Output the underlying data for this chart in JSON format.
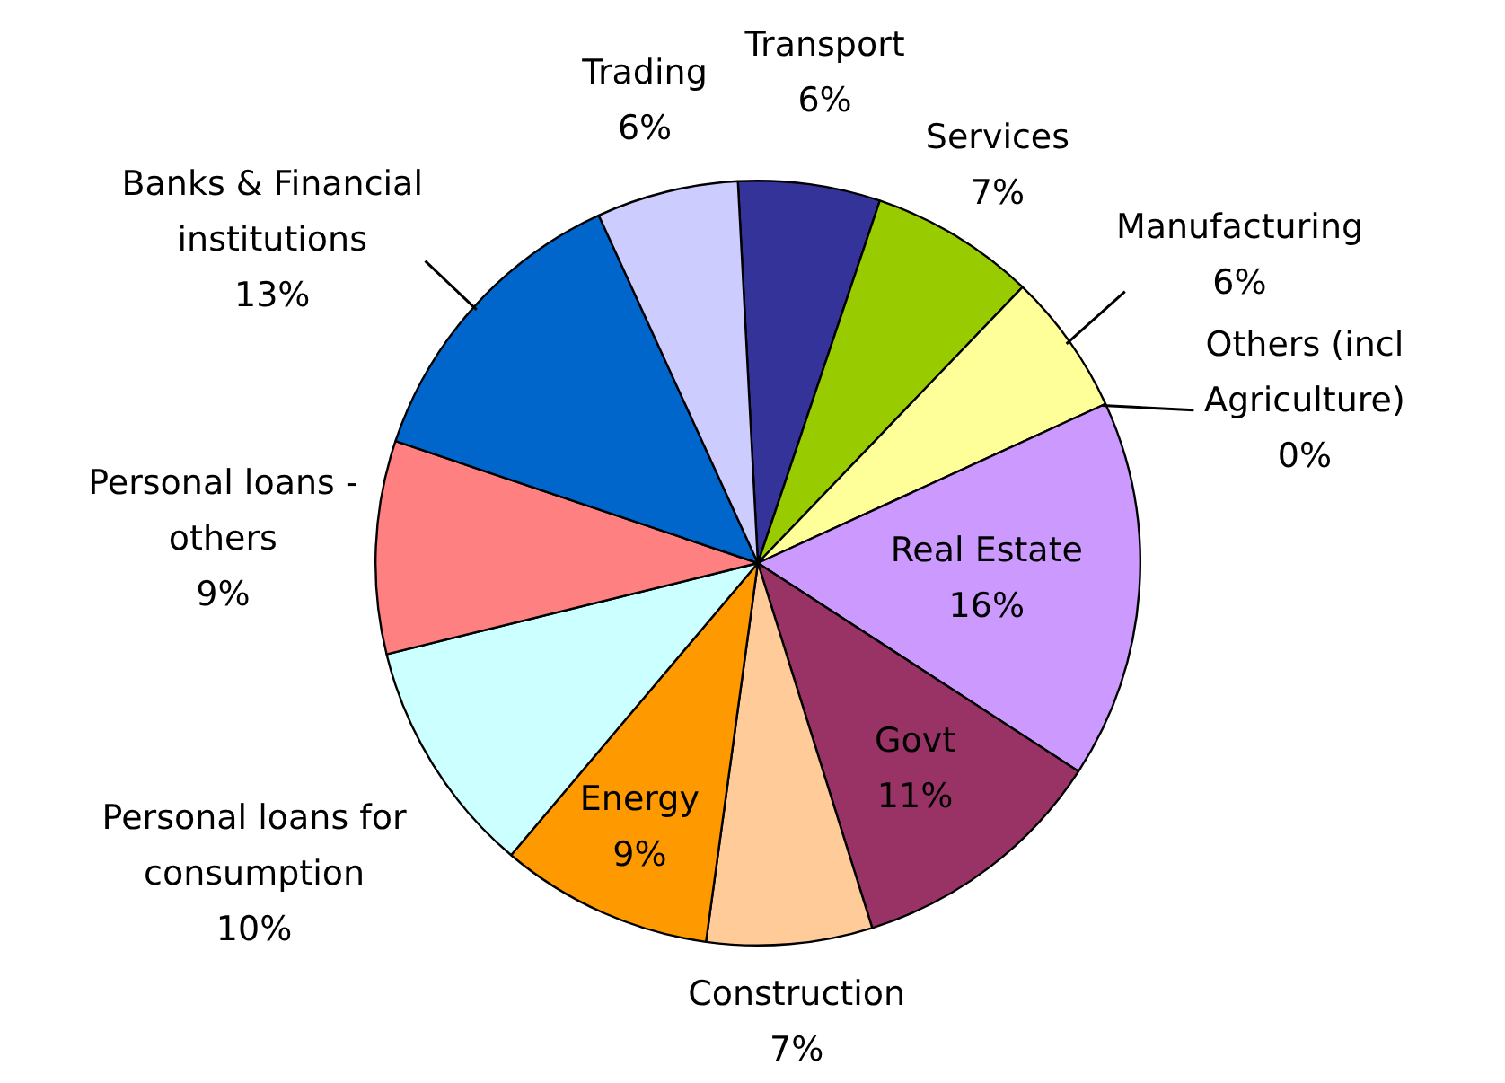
{
  "chart_data": {
    "type": "pie",
    "categories": [
      "Transport",
      "Services",
      "Manufacturing",
      "Others (incl Agriculture)",
      "Real Estate",
      "Govt",
      "Construction",
      "Energy",
      "Personal loans for consumption",
      "Personal loans - others",
      "Banks & Financial institutions",
      "Trading"
    ],
    "values": [
      6,
      7,
      6,
      0,
      16,
      11,
      7,
      9,
      10,
      9,
      13,
      6
    ],
    "value_labels": [
      "6%",
      "7%",
      "6%",
      "0%",
      "16%",
      "11%",
      "7%",
      "9%",
      "10%",
      "9%",
      "13%",
      "6%"
    ],
    "colors": [
      "#333399",
      "#99cc00",
      "#ffff99",
      "#33cccc",
      "#cc99ff",
      "#993366",
      "#ffcc99",
      "#ff9900",
      "#ccffff",
      "#ff8080",
      "#0066cc",
      "#ccccff"
    ],
    "legend": false
  }
}
